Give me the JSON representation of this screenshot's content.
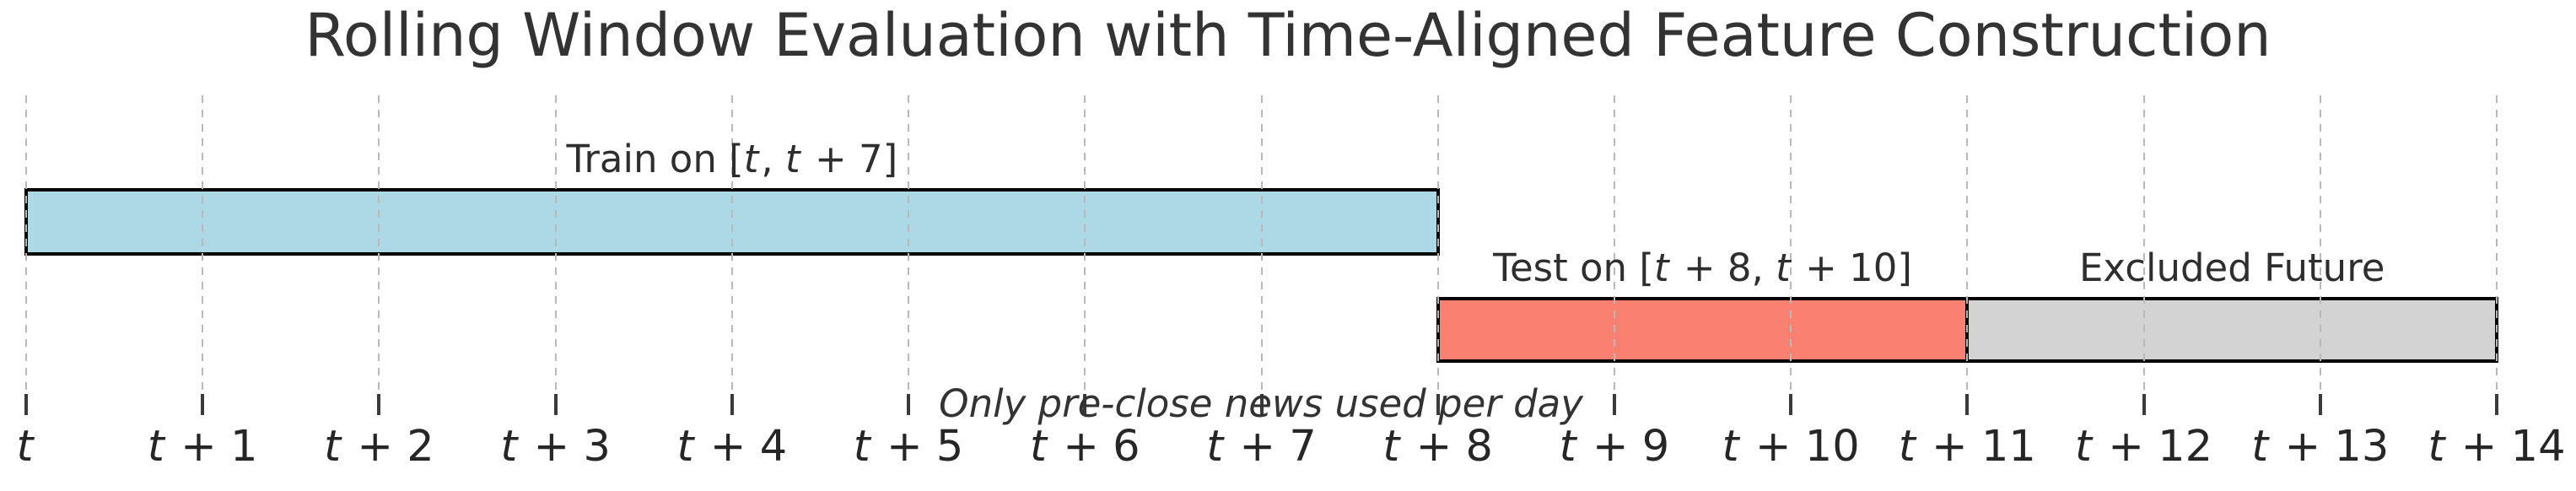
{
  "chart_data": {
    "type": "bar",
    "subtype": "horizontal-timeline",
    "title": "Rolling Window Evaluation with Time-Aligned Feature Construction",
    "annotation": "Only pre-close news used per day",
    "x_axis": {
      "tick_labels": [
        "t",
        "t + 1",
        "t + 2",
        "t + 3",
        "t + 4",
        "t + 5",
        "t + 6",
        "t + 7",
        "t + 8",
        "t + 9",
        "t + 10",
        "t + 11",
        "t + 12",
        "t + 13",
        "t + 14"
      ],
      "tick_values": [
        0,
        1,
        2,
        3,
        4,
        5,
        6,
        7,
        8,
        9,
        10,
        11,
        12,
        13,
        14
      ],
      "xlim": [
        0,
        14
      ],
      "grid": "dashed-vertical"
    },
    "series": [
      {
        "name": "train",
        "label": "Train on [t, t + 7]",
        "start": 0,
        "end": 8,
        "row": 0,
        "fill": "#ADD8E6",
        "edge": "#000000"
      },
      {
        "name": "test",
        "label": "Test on [t + 8, t + 10]",
        "start": 8,
        "end": 11,
        "row": 1,
        "fill": "#FA8072",
        "edge": "#000000"
      },
      {
        "name": "excluded",
        "label": "Excluded Future",
        "start": 11,
        "end": 14,
        "row": 1,
        "fill": "#D3D3D3",
        "edge": "#000000"
      }
    ],
    "colors": {
      "train_fill": "#ADD8E6",
      "test_fill": "#FA8072",
      "excluded_fill": "#D3D3D3",
      "bar_edge": "#000000",
      "grid": "#b9b9b9",
      "text": "#333333"
    }
  }
}
